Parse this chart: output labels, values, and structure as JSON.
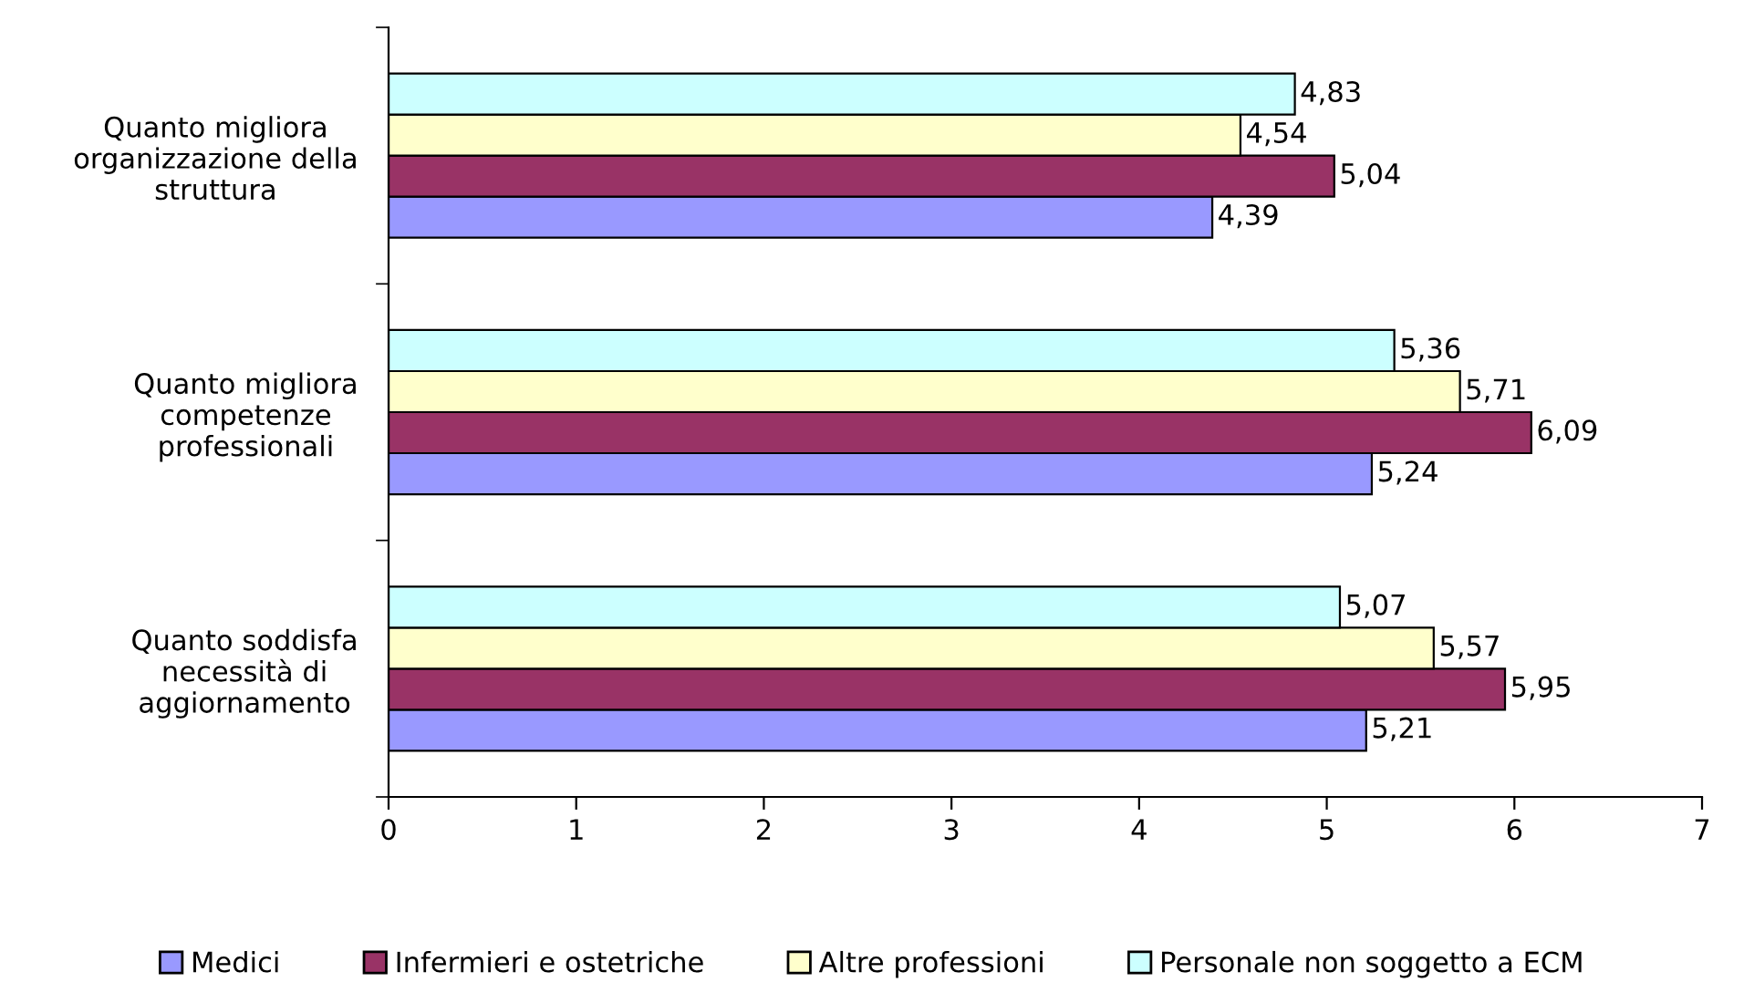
{
  "chart_data": {
    "type": "bar",
    "orientation": "horizontal",
    "categories": [
      "Quanto migliora organizzazione della struttura",
      "Quanto migliora competenze professionali",
      "Quanto soddisfa necessità di aggiornamento"
    ],
    "series": [
      {
        "name": "Medici",
        "color": "#9999ff",
        "values": [
          4.39,
          5.24,
          5.21
        ],
        "value_labels": [
          "4,39",
          "5,24",
          "5,21"
        ]
      },
      {
        "name": "Infermieri e ostetriche",
        "color": "#993366",
        "values": [
          5.04,
          6.09,
          5.95
        ],
        "value_labels": [
          "5,04",
          "6,09",
          "5,95"
        ]
      },
      {
        "name": "Altre professioni",
        "color": "#ffffcc",
        "values": [
          4.54,
          5.71,
          5.57
        ],
        "value_labels": [
          "4,54",
          "5,71",
          "5,57"
        ]
      },
      {
        "name": "Personale non soggetto a ECM",
        "color": "#ccffff",
        "values": [
          4.83,
          5.36,
          5.07
        ],
        "value_labels": [
          "4,83",
          "5,36",
          "5,07"
        ]
      }
    ],
    "xlim": [
      0,
      7
    ],
    "xticks": [
      0,
      1,
      2,
      3,
      4,
      5,
      6,
      7
    ],
    "grid": false,
    "legend": "bottom"
  }
}
